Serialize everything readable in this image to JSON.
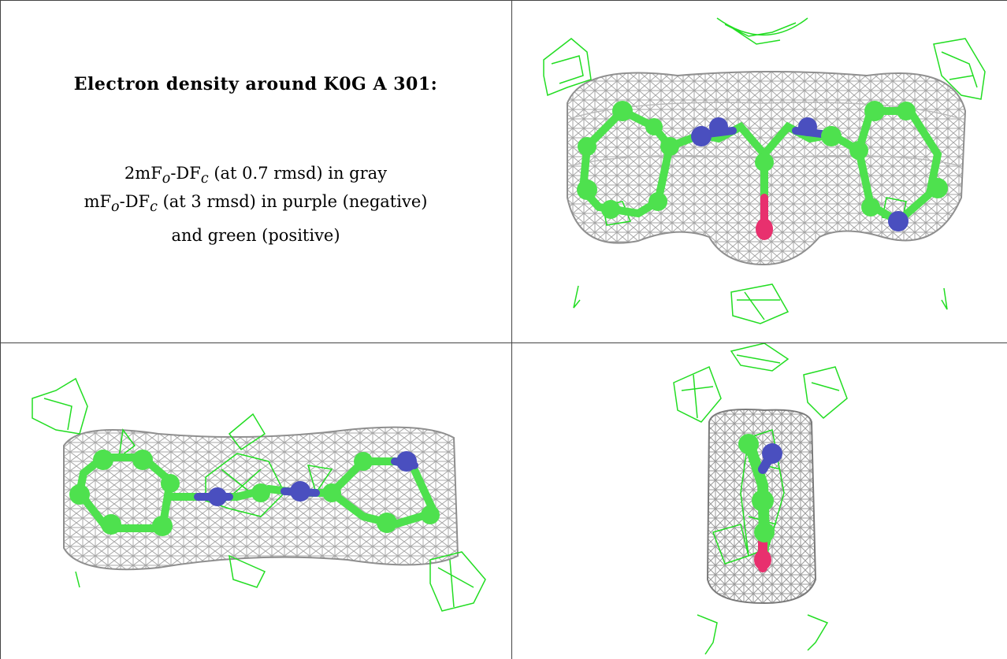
{
  "caption": {
    "title": "Electron density around K0G A 301:",
    "line1": {
      "pre": "2mF",
      "sub1": "o",
      "mid": "-DF",
      "sub2": "c",
      "post": " (at 0.7 rmsd) in gray"
    },
    "line2": {
      "pre": "mF",
      "sub1": "o",
      "mid": "-DF",
      "sub2": "c",
      "post": " (at 3 rmsd) in purple (negative)"
    },
    "line3": "and green (positive)"
  },
  "colors": {
    "carbon": "#4ee14e",
    "nitrogen": "#4a4fbf",
    "oxygen": "#e8306e",
    "mesh_2fofc": "#9a9a9a",
    "mesh_positive": "#22dd22",
    "border": "#444444"
  }
}
